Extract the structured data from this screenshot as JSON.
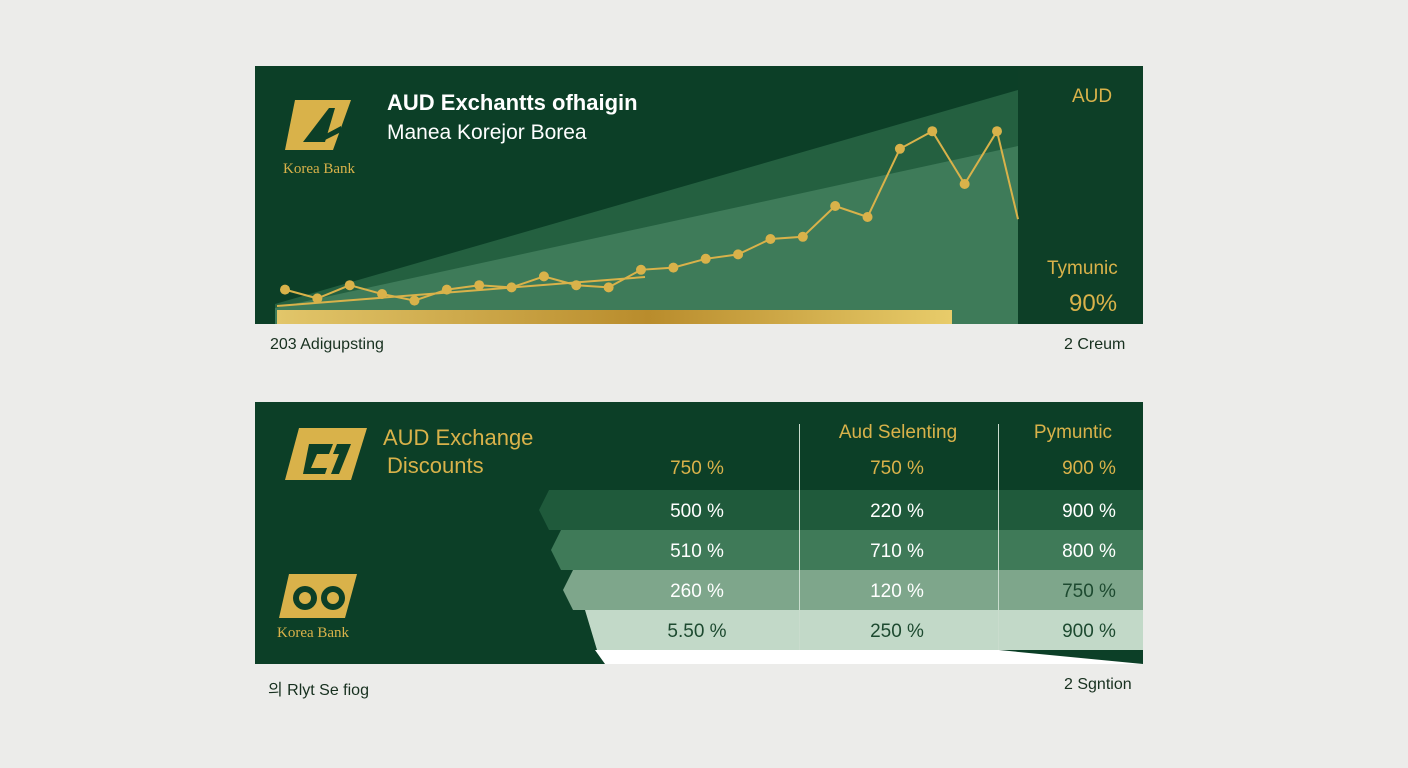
{
  "top_card": {
    "logo_text": "Korea Bank",
    "title": "AUD Exchantts ofhaigin",
    "subtitle": "Manea Korejor Borea",
    "currency_label": "AUD",
    "side_label": "Tymunic",
    "side_value": "90%",
    "caption_left": "203 Adigupsting",
    "caption_right": "2 Creum",
    "line_points": [
      12,
      8,
      14,
      10,
      7,
      12,
      14,
      13,
      18,
      14,
      13,
      21,
      22,
      26,
      28,
      35,
      36,
      50,
      45,
      76,
      84,
      60,
      84
    ]
  },
  "bottom_card": {
    "title_line1": "AUD Exchange",
    "title_line2": "Discounts",
    "logo_text": "Korea Bank",
    "header_col2": "Aud Selenting",
    "header_col3": "Pymuntic",
    "caption_left": "의 Rlyt Se fiog",
    "caption_right": "2 Sgntion",
    "rows": [
      [
        "750 %",
        "750 %",
        "900 %"
      ],
      [
        "500 %",
        "220 %",
        "900 %"
      ],
      [
        "510 %",
        "710 %",
        "800 %"
      ],
      [
        "260 %",
        "120 %",
        "750 %"
      ],
      [
        "5.50 %",
        "250 %",
        "900 %"
      ]
    ]
  },
  "colors": {
    "panel": "#0c3f27",
    "gold": "#d9b24a",
    "page": "#ececea"
  }
}
